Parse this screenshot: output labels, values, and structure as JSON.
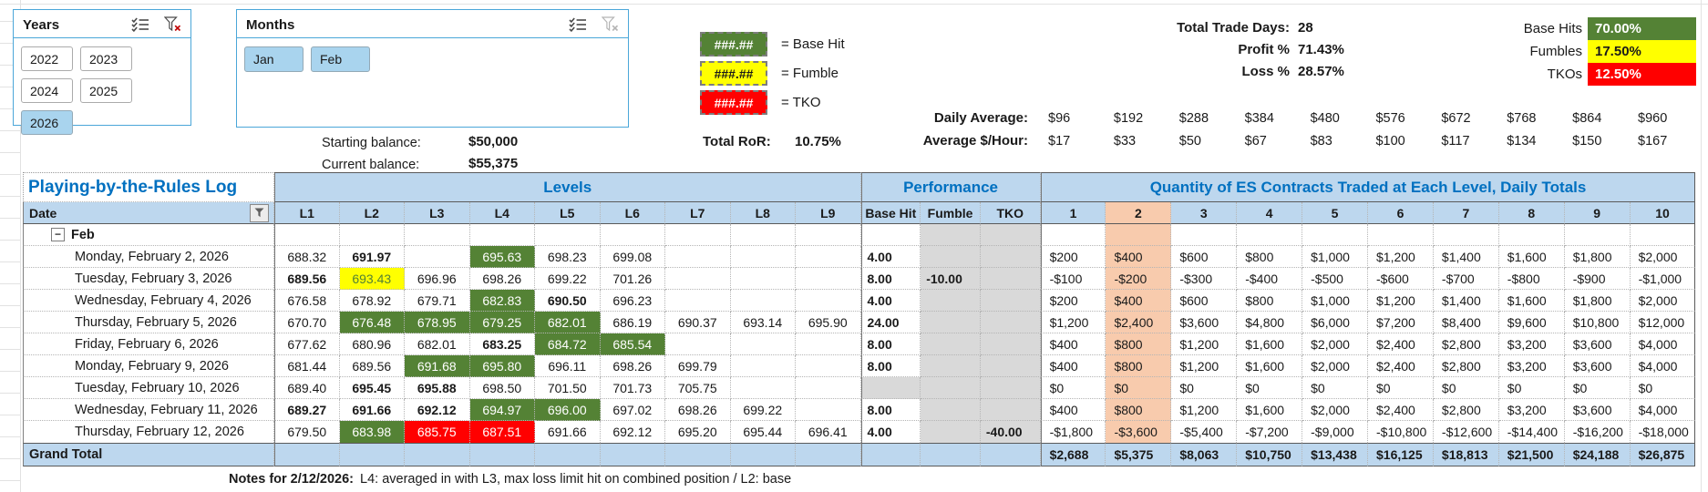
{
  "slicers": {
    "years": {
      "title": "Years",
      "items": [
        {
          "label": "2022",
          "selected": false
        },
        {
          "label": "2023",
          "selected": false
        },
        {
          "label": "2024",
          "selected": false
        },
        {
          "label": "2025",
          "selected": false
        },
        {
          "label": "2026",
          "selected": true
        }
      ]
    },
    "months": {
      "title": "Months",
      "items": [
        {
          "label": "Jan",
          "selected": true
        },
        {
          "label": "Feb",
          "selected": true
        }
      ]
    }
  },
  "icons": {
    "multi_select": "multi-select-icon",
    "clear_filter": "clear-filter-icon",
    "column_filter": "column-filter-icon",
    "collapse_group": "collapse-minus-icon"
  },
  "legend": {
    "items": [
      {
        "pattern": "###.##",
        "label": "= Base Hit",
        "style": "base-hit"
      },
      {
        "pattern": "###.##",
        "label": "= Fumble",
        "style": "fumble"
      },
      {
        "pattern": "###.##",
        "label": "= TKO",
        "style": "tko"
      }
    ]
  },
  "stats": {
    "rows": [
      {
        "label": "Total Trade Days:",
        "value": "28"
      },
      {
        "label": "Profit %",
        "value": "71.43%"
      },
      {
        "label": "Loss %",
        "value": "28.57%"
      }
    ],
    "badges": [
      {
        "label": "Base Hits",
        "value": "70.00%",
        "style": "base-hit"
      },
      {
        "label": "Fumbles",
        "value": "17.50%",
        "style": "fumble"
      },
      {
        "label": "TKOs",
        "value": "12.50%",
        "style": "tko"
      }
    ]
  },
  "averages": {
    "daily": {
      "label": "Daily Average:",
      "values": [
        "$96",
        "$192",
        "$288",
        "$384",
        "$480",
        "$576",
        "$672",
        "$768",
        "$864",
        "$960"
      ]
    },
    "hourly": {
      "label": "Average $/Hour:",
      "values": [
        "$17",
        "$33",
        "$50",
        "$67",
        "$83",
        "$100",
        "$117",
        "$134",
        "$150",
        "$167"
      ]
    }
  },
  "balance": {
    "starting_label": "Starting balance:",
    "starting_value": "$50,000",
    "current_label": "Current balance:",
    "current_value": "$55,375",
    "ror_label": "Total RoR:",
    "ror_value": "10.75%"
  },
  "colors": {
    "header_blue": "#BDD7EE",
    "accent_text_blue": "#0070C0",
    "base_hit_green": "#548235",
    "fumble_yellow": "#FFFF00",
    "tko_red": "#FF0000",
    "highlight_peach": "#F8CBAD",
    "muted_gray": "#D9D9D9",
    "slicer_selected_blue": "#A9D4EE"
  },
  "table": {
    "title": "Playing-by-the-Rules Log",
    "group_headers": {
      "levels": "Levels",
      "performance": "Performance",
      "quantity": "Quantity of ES Contracts Traded at Each Level, Daily Totals"
    },
    "columns": {
      "date": "Date",
      "levels": [
        "L1",
        "L2",
        "L3",
        "L4",
        "L5",
        "L6",
        "L7",
        "L8",
        "L9"
      ],
      "performance": [
        "Base Hit",
        "Fumble",
        "TKO"
      ],
      "quantity": [
        "1",
        "2",
        "3",
        "4",
        "5",
        "6",
        "7",
        "8",
        "9",
        "10"
      ]
    },
    "group_row": {
      "label": "Feb"
    },
    "rows": [
      {
        "date": "Monday, February 2, 2026",
        "levels": [
          "688.32",
          "691.97|b",
          "",
          "695.63|g",
          "698.23",
          "699.08",
          "",
          "",
          ""
        ],
        "perf": [
          "4.00",
          "",
          ""
        ],
        "qty": [
          "$200",
          "$400",
          "$600",
          "$800",
          "$1,000",
          "$1,200",
          "$1,400",
          "$1,600",
          "$1,800",
          "$2,000"
        ]
      },
      {
        "date": "Tuesday, February 3, 2026",
        "levels": [
          "689.56|b",
          "693.43|y",
          "696.96",
          "698.26",
          "699.22",
          "701.26",
          "",
          "",
          ""
        ],
        "perf": [
          "8.00",
          "-10.00",
          ""
        ],
        "qty": [
          "-$100",
          "-$200",
          "-$300",
          "-$400",
          "-$500",
          "-$600",
          "-$700",
          "-$800",
          "-$900",
          "-$1,000"
        ]
      },
      {
        "date": "Wednesday, February 4, 2026",
        "levels": [
          "676.58",
          "678.92",
          "679.71",
          "682.83|g",
          "690.50|b",
          "696.23",
          "",
          "",
          ""
        ],
        "perf": [
          "4.00",
          "",
          ""
        ],
        "qty": [
          "$200",
          "$400",
          "$600",
          "$800",
          "$1,000",
          "$1,200",
          "$1,400",
          "$1,600",
          "$1,800",
          "$2,000"
        ]
      },
      {
        "date": "Thursday, February 5, 2026",
        "levels": [
          "670.70",
          "676.48|g",
          "678.95|g",
          "679.25|g",
          "682.01|g",
          "686.19",
          "690.37",
          "693.14",
          "695.90"
        ],
        "perf": [
          "24.00",
          "",
          ""
        ],
        "qty": [
          "$1,200",
          "$2,400",
          "$3,600",
          "$4,800",
          "$6,000",
          "$7,200",
          "$8,400",
          "$9,600",
          "$10,800",
          "$12,000"
        ]
      },
      {
        "date": "Friday, February 6, 2026",
        "levels": [
          "677.62",
          "680.96",
          "682.01",
          "683.25|b",
          "684.72|g",
          "685.54|g",
          "",
          "",
          ""
        ],
        "perf": [
          "8.00",
          "",
          ""
        ],
        "qty": [
          "$400",
          "$800",
          "$1,200",
          "$1,600",
          "$2,000",
          "$2,400",
          "$2,800",
          "$3,200",
          "$3,600",
          "$4,000"
        ]
      },
      {
        "date": "Monday, February 9, 2026",
        "levels": [
          "681.44",
          "689.56",
          "691.68|g",
          "695.80|g",
          "696.11",
          "698.26",
          "699.79",
          "",
          ""
        ],
        "perf": [
          "8.00",
          "",
          ""
        ],
        "qty": [
          "$400",
          "$800",
          "$1,200",
          "$1,600",
          "$2,000",
          "$2,400",
          "$2,800",
          "$3,200",
          "$3,600",
          "$4,000"
        ]
      },
      {
        "date": "Tuesday, February 10, 2026",
        "levels": [
          "689.40",
          "695.45|b",
          "695.88|b",
          "698.50",
          "701.50",
          "701.73",
          "705.75",
          "",
          ""
        ],
        "perf": [
          "|x",
          "",
          ""
        ],
        "qty": [
          "$0",
          "$0",
          "$0",
          "$0",
          "$0",
          "$0",
          "$0",
          "$0",
          "$0",
          "$0"
        ]
      },
      {
        "date": "Wednesday, February 11, 2026",
        "levels": [
          "689.27|b",
          "691.66|b",
          "692.12|b",
          "694.97|g",
          "696.00|g",
          "697.02",
          "698.26",
          "699.22",
          ""
        ],
        "perf": [
          "8.00",
          "",
          ""
        ],
        "qty": [
          "$400",
          "$800",
          "$1,200",
          "$1,600",
          "$2,000",
          "$2,400",
          "$2,800",
          "$3,200",
          "$3,600",
          "$4,000"
        ]
      },
      {
        "date": "Thursday, February 12, 2026",
        "levels": [
          "679.50",
          "683.98|g",
          "685.75|r",
          "687.51|r",
          "691.66",
          "692.12",
          "695.20",
          "695.44",
          "696.41"
        ],
        "perf": [
          "4.00",
          "",
          "-40.00"
        ],
        "qty": [
          "-$1,800",
          "-$3,600",
          "-$5,400",
          "-$7,200",
          "-$9,000",
          "-$10,800",
          "-$12,600",
          "-$14,400",
          "-$16,200",
          "-$18,000"
        ]
      }
    ],
    "grand_total": {
      "label": "Grand Total",
      "qty": [
        "$2,688",
        "$5,375",
        "$8,063",
        "$10,750",
        "$13,438",
        "$16,125",
        "$18,813",
        "$21,500",
        "$24,188",
        "$26,875"
      ]
    }
  },
  "notes": {
    "label": "Notes for 2/12/2026:",
    "text": "L4: averaged in with L3, max loss limit hit on combined position / L2: base"
  }
}
